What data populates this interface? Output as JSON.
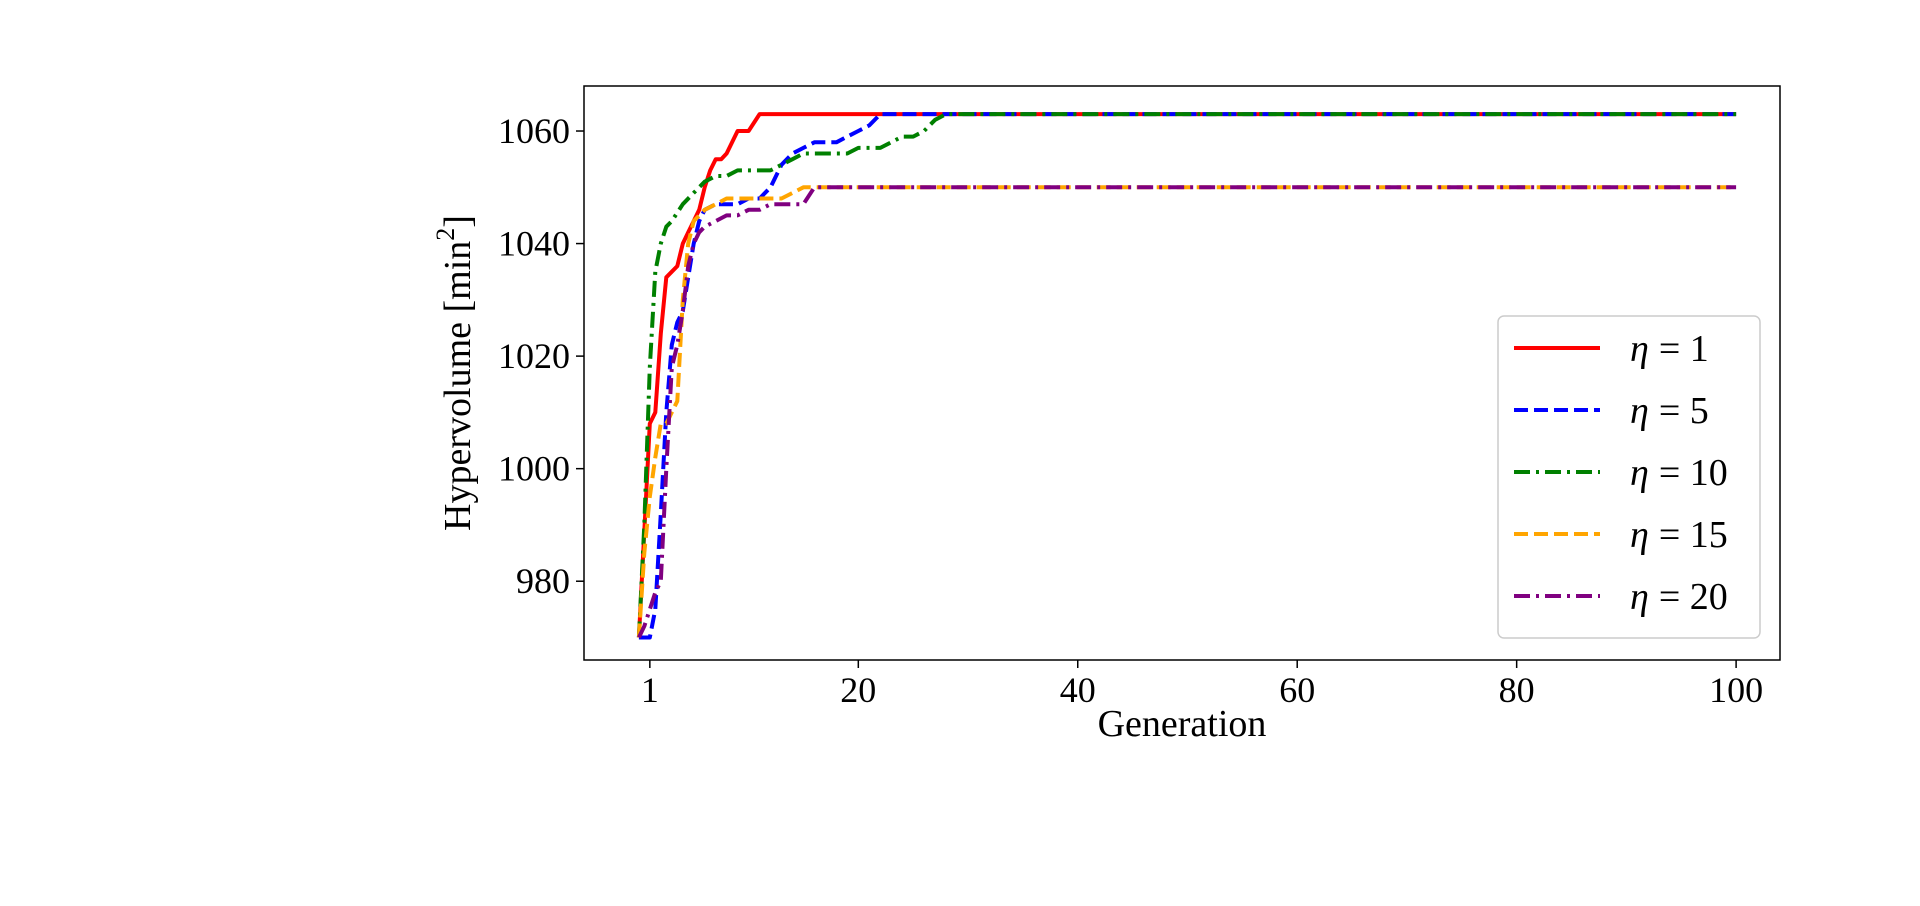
{
  "chart_data": {
    "type": "line",
    "xlabel": "Generation",
    "ylabel_main": "Hypervolume [min",
    "ylabel_sup": "2",
    "ylabel_end": "]",
    "xlim": [
      -5,
      104
    ],
    "ylim": [
      966,
      1068
    ],
    "xticks": [
      1,
      20,
      40,
      60,
      80,
      100
    ],
    "xtick_labels": [
      "1",
      "20",
      "40",
      "60",
      "80",
      "100"
    ],
    "yticks": [
      980,
      1000,
      1020,
      1040,
      1060
    ],
    "ytick_labels": [
      "980",
      "1000",
      "1020",
      "1040",
      "1060"
    ],
    "grid": false,
    "legend_position": "lower-right",
    "series": [
      {
        "name": "1",
        "color": "#ff0000",
        "dash": "solid",
        "points": [
          [
            0,
            970
          ],
          [
            1,
            1008
          ],
          [
            1.5,
            1010
          ],
          [
            2,
            1024
          ],
          [
            2.5,
            1034
          ],
          [
            3,
            1035
          ],
          [
            3.5,
            1036
          ],
          [
            4,
            1040
          ],
          [
            4.5,
            1042
          ],
          [
            5,
            1044
          ],
          [
            5.5,
            1046
          ],
          [
            6,
            1050
          ],
          [
            6.5,
            1053
          ],
          [
            7,
            1055
          ],
          [
            7.5,
            1055
          ],
          [
            8,
            1056
          ],
          [
            8.5,
            1058
          ],
          [
            9,
            1060
          ],
          [
            10,
            1060
          ],
          [
            11,
            1063
          ],
          [
            12,
            1063
          ],
          [
            20,
            1063
          ],
          [
            30,
            1063
          ],
          [
            100,
            1063
          ]
        ]
      },
      {
        "name": "5",
        "color": "#0000ff",
        "dash": "dashed",
        "points": [
          [
            0,
            970
          ],
          [
            1,
            970
          ],
          [
            1.5,
            975
          ],
          [
            2,
            992
          ],
          [
            2.5,
            1010
          ],
          [
            3,
            1022
          ],
          [
            3.5,
            1026
          ],
          [
            4,
            1028
          ],
          [
            4.5,
            1034
          ],
          [
            5,
            1040
          ],
          [
            5.5,
            1044
          ],
          [
            6,
            1046
          ],
          [
            7,
            1047
          ],
          [
            8,
            1047
          ],
          [
            9,
            1047
          ],
          [
            10,
            1048
          ],
          [
            11,
            1048
          ],
          [
            12,
            1050
          ],
          [
            13,
            1054
          ],
          [
            14,
            1056
          ],
          [
            15,
            1057
          ],
          [
            16,
            1058
          ],
          [
            17,
            1058
          ],
          [
            18,
            1058
          ],
          [
            19,
            1059
          ],
          [
            20,
            1060
          ],
          [
            21,
            1061
          ],
          [
            22,
            1063
          ],
          [
            25,
            1063
          ],
          [
            30,
            1063
          ],
          [
            100,
            1063
          ]
        ]
      },
      {
        "name": "10",
        "color": "#008000",
        "dash": "dashdot",
        "points": [
          [
            0,
            970
          ],
          [
            0.5,
            990
          ],
          [
            1,
            1018
          ],
          [
            1.5,
            1035
          ],
          [
            2,
            1040
          ],
          [
            2.5,
            1043
          ],
          [
            3,
            1044
          ],
          [
            4,
            1047
          ],
          [
            5,
            1049
          ],
          [
            6,
            1051
          ],
          [
            7,
            1052
          ],
          [
            8,
            1052
          ],
          [
            9,
            1053
          ],
          [
            10,
            1053
          ],
          [
            11,
            1053
          ],
          [
            12,
            1053
          ],
          [
            13,
            1054
          ],
          [
            14,
            1055
          ],
          [
            15,
            1056
          ],
          [
            16,
            1056
          ],
          [
            17,
            1056
          ],
          [
            18,
            1056
          ],
          [
            19,
            1056
          ],
          [
            20,
            1057
          ],
          [
            22,
            1057
          ],
          [
            23,
            1058
          ],
          [
            24,
            1059
          ],
          [
            25,
            1059
          ],
          [
            26,
            1060
          ],
          [
            27,
            1062
          ],
          [
            28,
            1063
          ],
          [
            30,
            1063
          ],
          [
            100,
            1063
          ]
        ]
      },
      {
        "name": "15",
        "color": "#ffa500",
        "dash": "dashed",
        "points": [
          [
            0,
            970
          ],
          [
            0.5,
            985
          ],
          [
            1,
            995
          ],
          [
            1.5,
            1002
          ],
          [
            2,
            1008
          ],
          [
            2.5,
            1008
          ],
          [
            3,
            1010
          ],
          [
            3.5,
            1012
          ],
          [
            4,
            1030
          ],
          [
            4.5,
            1040
          ],
          [
            5,
            1044
          ],
          [
            6,
            1046
          ],
          [
            7,
            1047
          ],
          [
            8,
            1048
          ],
          [
            9,
            1048
          ],
          [
            10,
            1048
          ],
          [
            11,
            1048
          ],
          [
            12,
            1048
          ],
          [
            13,
            1048
          ],
          [
            14,
            1049
          ],
          [
            15,
            1050
          ],
          [
            16,
            1050
          ],
          [
            20,
            1050
          ],
          [
            30,
            1050
          ],
          [
            100,
            1050
          ]
        ]
      },
      {
        "name": "20",
        "color": "#800080",
        "dash": "dashdot",
        "points": [
          [
            0,
            970
          ],
          [
            0.5,
            972
          ],
          [
            1,
            975
          ],
          [
            1.5,
            978
          ],
          [
            2,
            980
          ],
          [
            2.5,
            1000
          ],
          [
            3,
            1018
          ],
          [
            3.5,
            1022
          ],
          [
            4,
            1028
          ],
          [
            4.5,
            1036
          ],
          [
            5,
            1040
          ],
          [
            5.5,
            1042
          ],
          [
            6,
            1043
          ],
          [
            7,
            1044
          ],
          [
            8,
            1045
          ],
          [
            9,
            1045
          ],
          [
            10,
            1046
          ],
          [
            11,
            1046
          ],
          [
            12,
            1047
          ],
          [
            13,
            1047
          ],
          [
            14,
            1047
          ],
          [
            15,
            1047
          ],
          [
            16,
            1050
          ],
          [
            17,
            1050
          ],
          [
            20,
            1050
          ],
          [
            30,
            1050
          ],
          [
            100,
            1050
          ]
        ]
      }
    ]
  },
  "legend": {
    "symbol": "η",
    "entries": [
      "= 1",
      "= 5",
      "= 10",
      "= 15",
      "= 20"
    ]
  }
}
